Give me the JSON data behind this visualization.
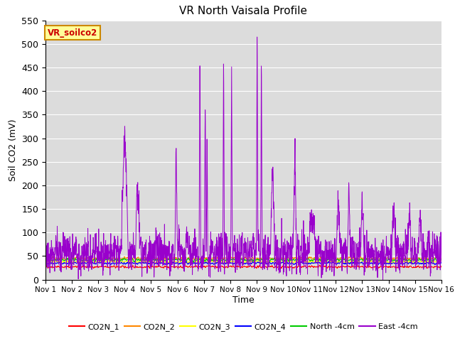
{
  "title": "VR North Vaisala Profile",
  "ylabel": "Soil CO2 (mV)",
  "xlabel": "Time",
  "annotation": "VR_soilco2",
  "ylim": [
    0,
    550
  ],
  "xlim": [
    0,
    15
  ],
  "xtick_labels": [
    "Nov 1",
    "Nov 2",
    "Nov 3",
    "Nov 4",
    "Nov 5",
    "Nov 6",
    "Nov 7",
    "Nov 8",
    "Nov 9",
    "Nov 10",
    "Nov 11",
    "Nov 12",
    "Nov 13",
    "Nov 14",
    "Nov 15",
    "Nov 16"
  ],
  "ytick_values": [
    0,
    50,
    100,
    150,
    200,
    250,
    300,
    350,
    400,
    450,
    500,
    550
  ],
  "bg_color": "#dcdcdc",
  "co2n1_color": "#ff0000",
  "co2n2_color": "#ff8800",
  "co2n3_color": "#ffff00",
  "co2n4_color": "#0000ff",
  "north4_color": "#00cc00",
  "east4_color": "#9900cc",
  "co2n1_base": 27,
  "co2n2_base": 45,
  "co2n3_base": 38,
  "co2n4_base": 35,
  "north4_base": 42,
  "east4_base": 55,
  "legend_labels": [
    "CO2N_1",
    "CO2N_2",
    "CO2N_3",
    "CO2N_4",
    "North -4cm",
    "East -4cm"
  ],
  "legend_colors": [
    "#ff0000",
    "#ff8800",
    "#ffff00",
    "#0000ff",
    "#00cc00",
    "#9900cc"
  ],
  "annotation_facecolor": "#ffff99",
  "annotation_edgecolor": "#cc8800",
  "annotation_textcolor": "#cc0000",
  "grid_color": "#ffffff",
  "figsize": [
    6.4,
    4.8
  ],
  "dpi": 100
}
